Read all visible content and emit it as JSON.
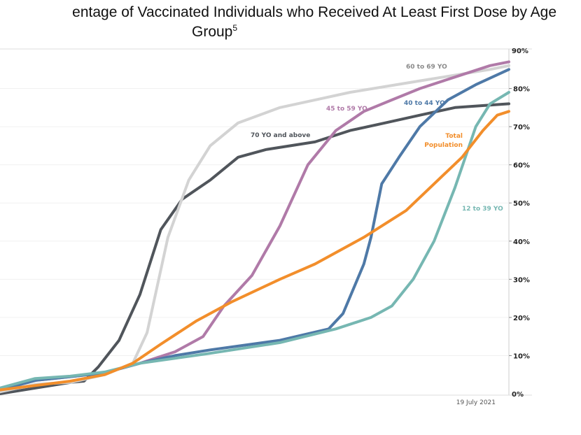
{
  "chart_data": {
    "type": "line",
    "title_line1": "entage of Vaccinated Individuals who Received At Least First Dose by Age",
    "title_line2": "Group",
    "title_superscript": "5",
    "xlabel": "",
    "ylabel": "",
    "x_end_label": "19 July 2021",
    "xlim": [
      0,
      100
    ],
    "ylim": [
      0,
      90
    ],
    "yticks": [
      "0%",
      "10%",
      "20%",
      "30%",
      "40%",
      "50%",
      "60%",
      "70%",
      "80%",
      "90%"
    ],
    "y_axis_position": "right",
    "grid": true,
    "series": [
      {
        "name": "70 YO and above",
        "color": "#50555b",
        "points": [
          [
            0,
            0
          ],
          [
            7,
            1.5
          ],
          [
            14,
            3
          ],
          [
            16.5,
            3.3
          ],
          [
            19.3,
            7
          ],
          [
            23.4,
            14
          ],
          [
            27.5,
            26
          ],
          [
            31.6,
            43
          ],
          [
            35.8,
            51
          ],
          [
            41.3,
            56
          ],
          [
            46.8,
            62
          ],
          [
            52.3,
            64
          ],
          [
            61.9,
            66
          ],
          [
            68.8,
            69
          ],
          [
            75.7,
            71
          ],
          [
            82.5,
            73
          ],
          [
            89.4,
            75
          ],
          [
            100,
            76
          ]
        ]
      },
      {
        "name": "60 to 69 YO",
        "color": "#d3d3d3",
        "points": [
          [
            0,
            0.5
          ],
          [
            7,
            2.5
          ],
          [
            14,
            3
          ],
          [
            20.6,
            5
          ],
          [
            26.1,
            8
          ],
          [
            28.9,
            16
          ],
          [
            33,
            41
          ],
          [
            37.1,
            56
          ],
          [
            41.3,
            65
          ],
          [
            46.8,
            71
          ],
          [
            55,
            75
          ],
          [
            61.9,
            77
          ],
          [
            68.8,
            79
          ],
          [
            82.5,
            82
          ],
          [
            96.3,
            85
          ],
          [
            100,
            86
          ]
        ]
      },
      {
        "name": "45 to 59 YO",
        "color": "#b07aa8",
        "points": [
          [
            0,
            1
          ],
          [
            7,
            3.5
          ],
          [
            14,
            4.5
          ],
          [
            20.6,
            5.5
          ],
          [
            27.5,
            8
          ],
          [
            34.4,
            11
          ],
          [
            39.9,
            15
          ],
          [
            44,
            23
          ],
          [
            49.5,
            31
          ],
          [
            55,
            44
          ],
          [
            60.5,
            60
          ],
          [
            66,
            69
          ],
          [
            71.5,
            74
          ],
          [
            77,
            77
          ],
          [
            82.5,
            80
          ],
          [
            89.4,
            83
          ],
          [
            96.3,
            86
          ],
          [
            100,
            87
          ]
        ]
      },
      {
        "name": "40 to 44 YO",
        "color": "#4e79a7",
        "points": [
          [
            0,
            1
          ],
          [
            7,
            3.5
          ],
          [
            14,
            4.5
          ],
          [
            20.6,
            5.5
          ],
          [
            27.5,
            8
          ],
          [
            34.4,
            10
          ],
          [
            41.3,
            11.5
          ],
          [
            55,
            14
          ],
          [
            64.6,
            17
          ],
          [
            67.4,
            21
          ],
          [
            71.5,
            34
          ],
          [
            72.9,
            41
          ],
          [
            75,
            55
          ],
          [
            78.4,
            62
          ],
          [
            82.5,
            70
          ],
          [
            88,
            77
          ],
          [
            93.5,
            81
          ],
          [
            100,
            85
          ]
        ]
      },
      {
        "name": "12 to 39 YO",
        "color": "#76b7b2",
        "points": [
          [
            0,
            1.5
          ],
          [
            6.9,
            4
          ],
          [
            13.8,
            4.6
          ],
          [
            20.6,
            5.7
          ],
          [
            27.5,
            8
          ],
          [
            41.3,
            10.6
          ],
          [
            55,
            13.4
          ],
          [
            66,
            17
          ],
          [
            72.9,
            20
          ],
          [
            77,
            23
          ],
          [
            81.2,
            30
          ],
          [
            85.3,
            40
          ],
          [
            89.4,
            54
          ],
          [
            93.5,
            70
          ],
          [
            96.3,
            76
          ],
          [
            100,
            79
          ]
        ]
      },
      {
        "name": "Total Population",
        "color": "#f28e2b",
        "points": [
          [
            0,
            1
          ],
          [
            13.8,
            3.3
          ],
          [
            20.6,
            5
          ],
          [
            26.1,
            8
          ],
          [
            31.6,
            13
          ],
          [
            38.5,
            19
          ],
          [
            45.4,
            24
          ],
          [
            55,
            30
          ],
          [
            61.9,
            34
          ],
          [
            71.5,
            41
          ],
          [
            79.8,
            48
          ],
          [
            85.3,
            55
          ],
          [
            90.8,
            62
          ],
          [
            94.9,
            69
          ],
          [
            97.7,
            73
          ],
          [
            100,
            74
          ]
        ]
      }
    ],
    "annotations": [
      "60 to 69 YO",
      "45 to 59 YO",
      "40 to 44 YO",
      "70 YO and above",
      "Total",
      "Population",
      "12 to 39 YO"
    ]
  }
}
